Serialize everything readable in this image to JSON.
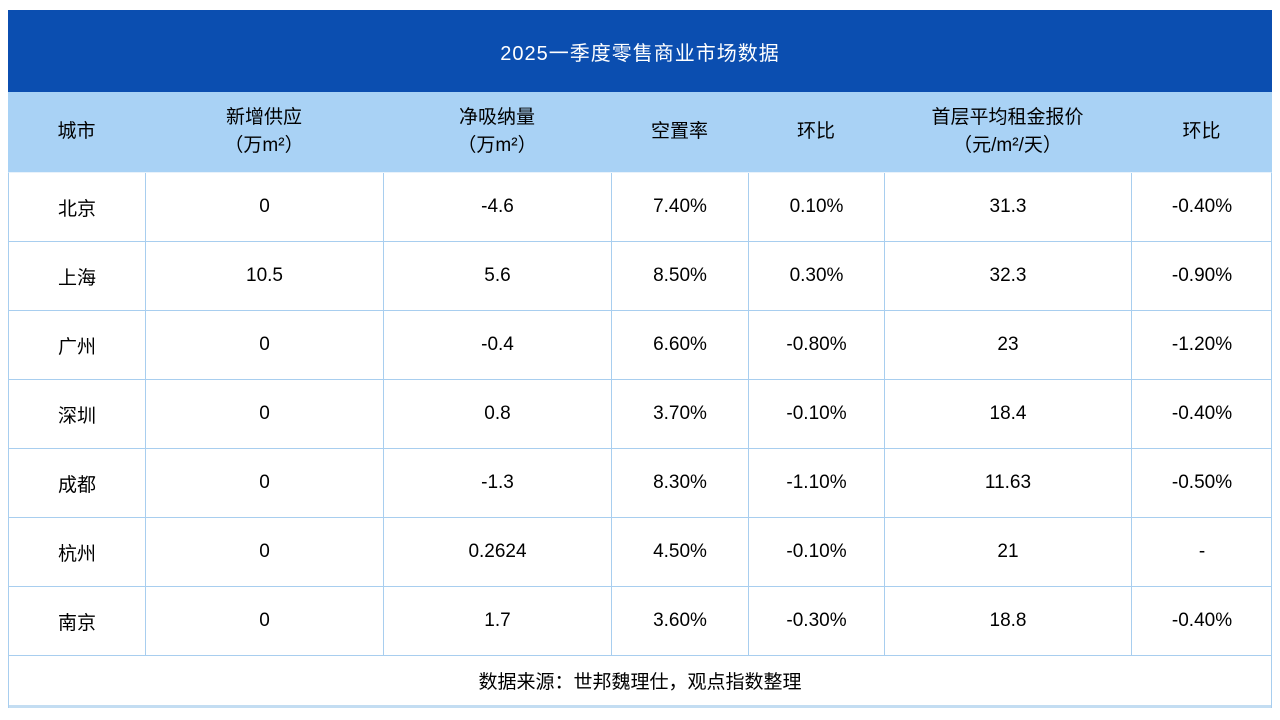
{
  "title": "2025一季度零售商业市场数据",
  "columns": [
    {
      "line1": "城市",
      "line2": ""
    },
    {
      "line1": "新增供应",
      "line2": "（万m²）"
    },
    {
      "line1": "净吸纳量",
      "line2": "（万m²）"
    },
    {
      "line1": "空置率",
      "line2": ""
    },
    {
      "line1": "环比",
      "line2": ""
    },
    {
      "line1": "首层平均租金报价",
      "line2": "（元/m²/天）"
    },
    {
      "line1": "环比",
      "line2": ""
    }
  ],
  "rows": [
    [
      "北京",
      "0",
      "-4.6",
      "7.40%",
      "0.10%",
      "31.3",
      "-0.40%"
    ],
    [
      "上海",
      "10.5",
      "5.6",
      "8.50%",
      "0.30%",
      "32.3",
      "-0.90%"
    ],
    [
      "广州",
      "0",
      "-0.4",
      "6.60%",
      "-0.80%",
      "23",
      "-1.20%"
    ],
    [
      "深圳",
      "0",
      "0.8",
      "3.70%",
      "-0.10%",
      "18.4",
      "-0.40%"
    ],
    [
      "成都",
      "0",
      "-1.3",
      "8.30%",
      "-1.10%",
      "11.63",
      "-0.50%"
    ],
    [
      "杭州",
      "0",
      "0.2624",
      "4.50%",
      "-0.10%",
      "21",
      "-"
    ],
    [
      "南京",
      "0",
      "1.7",
      "3.60%",
      "-0.30%",
      "18.8",
      "-0.40%"
    ]
  ],
  "source_note": "数据来源：世邦魏理仕，观点指数整理",
  "colors": {
    "title_bar_bg": "#0B4EB0",
    "title_text": "#FFFFFF",
    "header_bg": "#A9D2F5",
    "grid_line": "#A8CEEF",
    "bottom_border": "#C3DDF2",
    "body_text": "#000000"
  }
}
